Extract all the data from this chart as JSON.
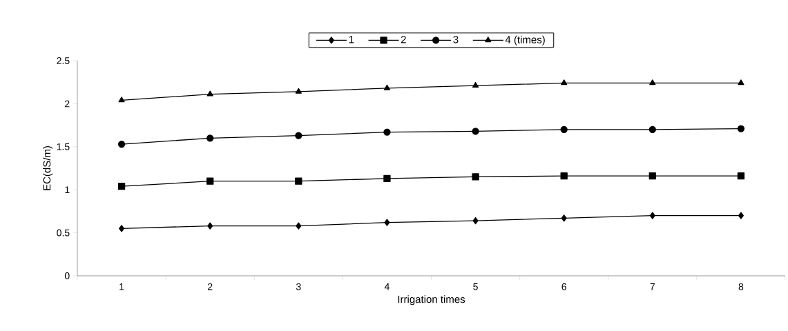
{
  "chart_data": {
    "type": "line",
    "xlabel": "Irrigation times",
    "ylabel": "EC(dS/m)",
    "categories": [
      "1",
      "2",
      "3",
      "4",
      "5",
      "6",
      "7",
      "8"
    ],
    "series": [
      {
        "name": "1",
        "color": "#000000",
        "marker": "diamond",
        "values": [
          0.55,
          0.58,
          0.58,
          0.62,
          0.64,
          0.67,
          0.7,
          0.7
        ]
      },
      {
        "name": "2",
        "color": "#000000",
        "marker": "square",
        "values": [
          1.04,
          1.1,
          1.1,
          1.13,
          1.15,
          1.16,
          1.16,
          1.16
        ]
      },
      {
        "name": "3",
        "color": "#000000",
        "marker": "circle",
        "values": [
          1.53,
          1.6,
          1.63,
          1.67,
          1.68,
          1.7,
          1.7,
          1.71
        ]
      },
      {
        "name": "4 (times)",
        "color": "#000000",
        "marker": "triangle",
        "values": [
          2.04,
          2.11,
          2.14,
          2.18,
          2.21,
          2.24,
          2.24,
          2.24
        ]
      }
    ],
    "ylim": [
      0,
      2.5
    ],
    "yticks": [
      0,
      0.5,
      1,
      1.5,
      2,
      2.5
    ],
    "legend": "top",
    "line_style": "solid"
  }
}
